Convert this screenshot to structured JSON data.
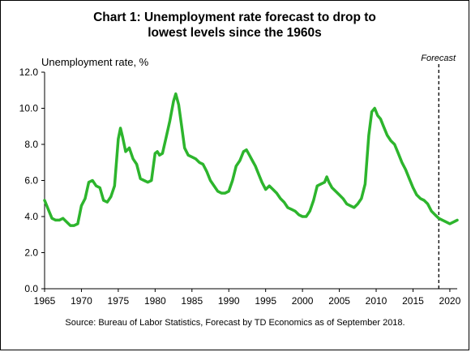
{
  "chart_data": {
    "type": "line",
    "title": [
      "Chart 1: Unemployment rate forecast to drop to",
      "lowest levels since the 1960s"
    ],
    "ylabel": "Unemployment rate, %",
    "xlabel": "",
    "xlim": [
      1965,
      2021
    ],
    "ylim": [
      0,
      12
    ],
    "y_ticks": [
      "0.0",
      "2.0",
      "4.0",
      "6.0",
      "8.0",
      "10.0",
      "12.0"
    ],
    "x_ticks": [
      "1965",
      "1970",
      "1975",
      "1980",
      "1985",
      "1990",
      "1995",
      "2000",
      "2005",
      "2010",
      "2015",
      "2020"
    ],
    "forecast_label": "Forecast",
    "forecast_start": 2018.5,
    "source": "Source: Bureau of Labor Statistics, Forecast by TD Economics as of September 2018.",
    "line_color": "#2db52d",
    "series": [
      {
        "x": [
          1965.0,
          1965.5,
          1966.0,
          1966.5,
          1967.0,
          1967.5,
          1968.0,
          1968.5,
          1969.0,
          1969.5,
          1970.0,
          1970.5,
          1971.0,
          1971.5,
          1972.0,
          1972.5,
          1973.0,
          1973.5,
          1974.0,
          1974.5,
          1975.0,
          1975.3,
          1975.6,
          1976.0,
          1976.5,
          1977.0,
          1977.5,
          1978.0,
          1978.5,
          1979.0,
          1979.5,
          1980.0,
          1980.3,
          1980.6,
          1981.0,
          1981.5,
          1982.0,
          1982.5,
          1982.8,
          1983.2,
          1983.6,
          1984.0,
          1984.5,
          1985.0,
          1985.5,
          1986.0,
          1986.5,
          1987.0,
          1987.5,
          1988.0,
          1988.5,
          1989.0,
          1989.5,
          1990.0,
          1990.5,
          1991.0,
          1991.5,
          1992.0,
          1992.4,
          1992.8,
          1993.2,
          1993.6,
          1994.0,
          1994.5,
          1995.0,
          1995.5,
          1996.0,
          1996.5,
          1997.0,
          1997.5,
          1998.0,
          1998.5,
          1999.0,
          1999.5,
          2000.0,
          2000.5,
          2001.0,
          2001.5,
          2002.0,
          2002.5,
          2003.0,
          2003.3,
          2003.6,
          2004.0,
          2004.5,
          2005.0,
          2005.5,
          2006.0,
          2006.5,
          2007.0,
          2007.5,
          2008.0,
          2008.5,
          2009.0,
          2009.4,
          2009.8,
          2010.2,
          2010.6,
          2011.0,
          2011.5,
          2012.0,
          2012.5,
          2013.0,
          2013.5,
          2014.0,
          2014.5,
          2015.0,
          2015.5,
          2016.0,
          2016.5,
          2017.0,
          2017.5,
          2018.0,
          2018.5,
          2019.0,
          2019.5,
          2020.0,
          2020.5,
          2021.0
        ],
        "values": [
          4.9,
          4.4,
          3.9,
          3.8,
          3.8,
          3.9,
          3.7,
          3.5,
          3.5,
          3.6,
          4.6,
          5.0,
          5.9,
          6.0,
          5.7,
          5.6,
          4.9,
          4.8,
          5.1,
          5.7,
          8.3,
          8.9,
          8.4,
          7.6,
          7.8,
          7.2,
          6.9,
          6.1,
          6.0,
          5.9,
          6.0,
          7.5,
          7.6,
          7.4,
          7.5,
          8.4,
          9.3,
          10.4,
          10.8,
          10.2,
          9.0,
          7.8,
          7.4,
          7.3,
          7.2,
          7.0,
          6.9,
          6.5,
          6.0,
          5.7,
          5.4,
          5.3,
          5.3,
          5.4,
          6.0,
          6.8,
          7.1,
          7.6,
          7.7,
          7.4,
          7.1,
          6.8,
          6.4,
          5.9,
          5.5,
          5.7,
          5.5,
          5.3,
          5.0,
          4.8,
          4.5,
          4.4,
          4.3,
          4.1,
          4.0,
          4.0,
          4.3,
          4.9,
          5.7,
          5.8,
          5.9,
          6.2,
          5.9,
          5.6,
          5.4,
          5.2,
          5.0,
          4.7,
          4.6,
          4.5,
          4.7,
          5.0,
          5.8,
          8.5,
          9.8,
          10.0,
          9.6,
          9.4,
          9.0,
          8.5,
          8.2,
          8.0,
          7.5,
          7.0,
          6.6,
          6.1,
          5.6,
          5.2,
          5.0,
          4.9,
          4.7,
          4.3,
          4.1,
          3.9,
          3.8,
          3.7,
          3.6,
          3.7,
          3.8
        ]
      }
    ],
    "grid": false,
    "legend": "none"
  }
}
